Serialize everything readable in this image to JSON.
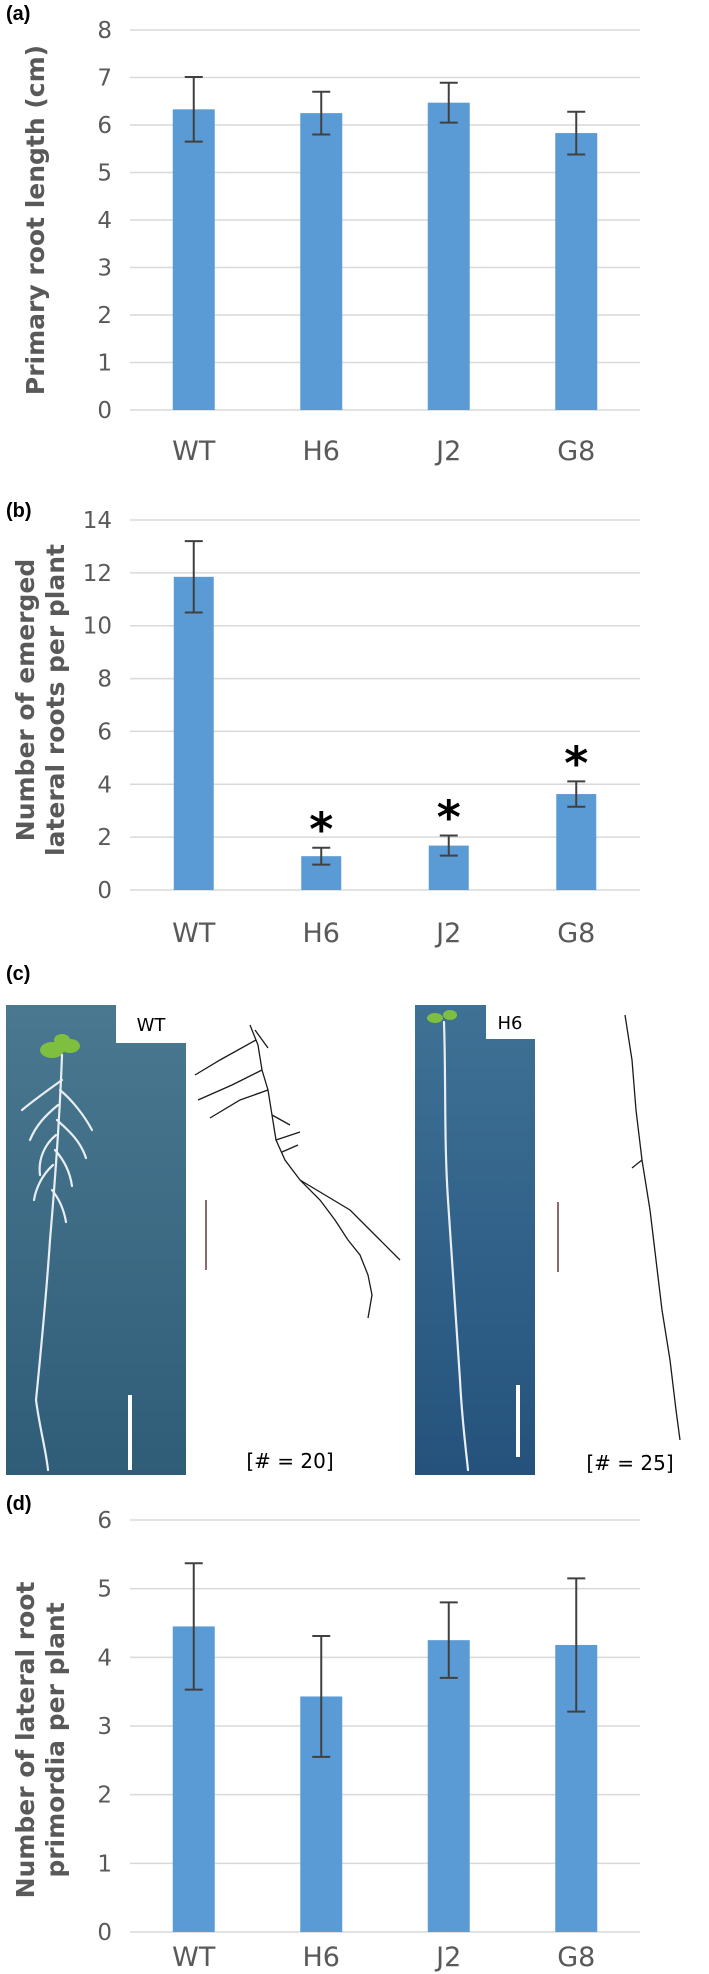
{
  "figure": {
    "panels": {
      "a": "(a)",
      "b": "(b)",
      "c": "(c)",
      "d": "(d)"
    }
  },
  "chart_data": [
    {
      "type": "bar",
      "panel": "(a)",
      "categories": [
        "WT",
        "H6",
        "J2",
        "G8"
      ],
      "values": [
        6.33,
        6.25,
        6.47,
        5.83
      ],
      "error": [
        0.68,
        0.45,
        0.42,
        0.45
      ],
      "ylabel": "Primary root length (cm)",
      "xlabel": "",
      "ylim": [
        0,
        8
      ],
      "yticks": [
        "0",
        "1",
        "2",
        "3",
        "4",
        "5",
        "6",
        "7",
        "8"
      ],
      "grid": true,
      "annotations": [],
      "color": "#5b9bd5"
    },
    {
      "type": "bar",
      "panel": "(b)",
      "categories": [
        "WT",
        "H6",
        "J2",
        "G8"
      ],
      "values": [
        11.85,
        1.28,
        1.68,
        3.63
      ],
      "error": [
        1.35,
        0.32,
        0.38,
        0.48
      ],
      "ylabel": [
        "Number of emerged",
        "lateral roots per plant"
      ],
      "xlabel": "",
      "ylim": [
        0,
        14
      ],
      "yticks": [
        "0",
        "2",
        "4",
        "6",
        "8",
        "10",
        "12",
        "14"
      ],
      "grid": true,
      "annotations": [
        "",
        "*",
        "*",
        "*"
      ],
      "color": "#5b9bd5"
    },
    {
      "type": "bar",
      "panel": "(d)",
      "categories": [
        "WT",
        "H6",
        "J2",
        "G8"
      ],
      "values": [
        4.45,
        3.43,
        4.25,
        4.18
      ],
      "error": [
        0.92,
        0.88,
        0.55,
        0.97
      ],
      "ylabel": [
        "Number of lateral root",
        "primordia per plant"
      ],
      "xlabel": "",
      "ylim": [
        0,
        6
      ],
      "yticks": [
        "0",
        "1",
        "2",
        "3",
        "4",
        "5",
        "6"
      ],
      "grid": true,
      "annotations": [],
      "color": "#5b9bd5"
    }
  ],
  "photos": {
    "wt": {
      "label": "WT",
      "count": "[# = 20]"
    },
    "h6": {
      "label": "H6",
      "count": "[# = 25]"
    }
  },
  "colors": {
    "bar": "#5b9bd5",
    "grid": "#d9d9d9",
    "errorbar": "#404040",
    "plate_wt": "#3a6a82",
    "plate_h6": "#2f5f86",
    "seedling": "#7fbf3f"
  }
}
